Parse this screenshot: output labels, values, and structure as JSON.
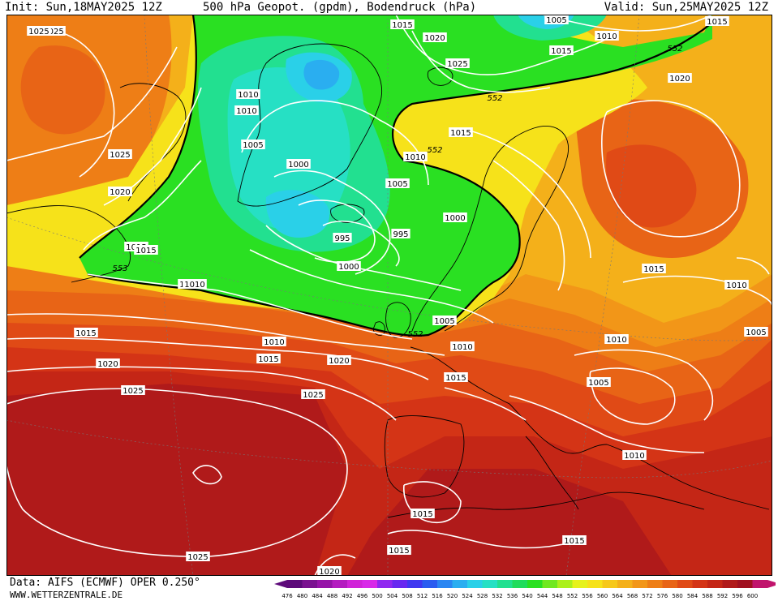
{
  "header": {
    "init": "Init: Sun,18MAY2025 12Z",
    "title": "500 hPa Geopot. (gpdm), Bodendruck (hPa)",
    "valid": "Valid: Sun,25MAY2025 12Z"
  },
  "footer": {
    "data_source": "Data: AIFS (ECMWF) OPER 0.250°",
    "website": "WWW.WETTERZENTRALE.DE"
  },
  "colors": {
    "greenland_high": "#f7aa1c",
    "azores_high": "#b11a1a",
    "trough_green": "#1ee41c",
    "low_cyan": "#18d6e4",
    "ridge_yellow": "#f6f21e",
    "isobar": "#ffffff",
    "coast": "#000000"
  },
  "colorbar": {
    "unit": "gpdm",
    "levels": [
      "476",
      "480",
      "484",
      "488",
      "492",
      "496",
      "500",
      "504",
      "508",
      "512",
      "516",
      "520",
      "524",
      "528",
      "532",
      "536",
      "540",
      "544",
      "548",
      "552",
      "556",
      "560",
      "564",
      "568",
      "572",
      "576",
      "580",
      "584",
      "588",
      "592",
      "596",
      "600"
    ],
    "colors": [
      "#5d0a7a",
      "#7a1290",
      "#9614a8",
      "#b41cc0",
      "#d024d8",
      "#d82ae8",
      "#9028f0",
      "#6828f0",
      "#4038f0",
      "#2a5cf0",
      "#2a86f2",
      "#2aaef0",
      "#2ad0e8",
      "#26e0c4",
      "#22e090",
      "#20dc5c",
      "#2ae022",
      "#70e820",
      "#acf01c",
      "#e6f21c",
      "#f6e21a",
      "#f6c81a",
      "#f4b01a",
      "#f29618",
      "#ee7e16",
      "#e86416",
      "#e04a16",
      "#d43416",
      "#c42616",
      "#b01a1a",
      "#a01020",
      "#c0146c"
    ]
  },
  "isobar_labels": [
    {
      "text": "1025",
      "name": "isobar-label-1025-nw"
    },
    {
      "text": "1025",
      "name": "isobar-label-1025-greenland"
    },
    {
      "text": "1020",
      "name": "isobar-label-1020-greenland"
    },
    {
      "text": "1015",
      "name": "isobar-label-1015-labrador"
    },
    {
      "text": "1010",
      "name": "isobar-label-1010-davis"
    },
    {
      "text": "1010",
      "name": "isobar-label-1010-davis-2"
    },
    {
      "text": "1005",
      "name": "isobar-label-1005-davis"
    },
    {
      "text": "1000",
      "name": "isobar-label-1000-low"
    },
    {
      "text": "995",
      "name": "isobar-label-995-center"
    },
    {
      "text": "995",
      "name": "isobar-label-995-east"
    },
    {
      "text": "1000",
      "name": "isobar-label-1000-south"
    },
    {
      "text": "1005",
      "name": "isobar-label-1005-low"
    },
    {
      "text": "1010",
      "name": "isobar-label-1010-mid"
    },
    {
      "text": "1000",
      "name": "isobar-label-1000-scand"
    },
    {
      "text": "1015",
      "name": "isobar-label-1015-top"
    },
    {
      "text": "1020",
      "name": "isobar-label-1020-top"
    },
    {
      "text": "1025",
      "name": "isobar-label-1025-top"
    },
    {
      "text": "1015",
      "name": "isobar-label-1015-norway"
    },
    {
      "text": "1010",
      "name": "isobar-label-1010-norway"
    },
    {
      "text": "1005",
      "name": "isobar-label-1005-arctic"
    },
    {
      "text": "1010",
      "name": "isobar-label-1010-arctic"
    },
    {
      "text": "1015",
      "name": "isobar-label-1015-arctic"
    },
    {
      "text": "1015",
      "name": "isobar-label-1015-ne"
    },
    {
      "text": "1020",
      "name": "isobar-label-1020-russia"
    },
    {
      "text": "1015",
      "name": "isobar-label-1015-russia"
    },
    {
      "text": "1010",
      "name": "isobar-label-1010-russia"
    },
    {
      "text": "1005",
      "name": "isobar-label-1005-east"
    },
    {
      "text": "1010",
      "name": "isobar-label-1010-balkans"
    },
    {
      "text": "1005",
      "name": "isobar-label-1005-balkans"
    },
    {
      "text": "1005",
      "name": "isobar-label-1005-northsea"
    },
    {
      "text": "1010",
      "name": "isobar-label-1010-northsea"
    },
    {
      "text": "1015",
      "name": "isobar-label-1015-france"
    },
    {
      "text": "1010",
      "name": "isobar-label-1010-med"
    },
    {
      "text": "1015",
      "name": "isobar-label-1015-algeria"
    },
    {
      "text": "1015",
      "name": "isobar-label-1015-sahara"
    },
    {
      "text": "1015",
      "name": "isobar-label-1015-morocco"
    },
    {
      "text": "1020",
      "name": "isobar-label-1020-bottom"
    },
    {
      "text": "1025",
      "name": "isobar-label-1025-atlantic-s"
    },
    {
      "text": "1025",
      "name": "isobar-label-1025-atlantic-w"
    },
    {
      "text": "1025",
      "name": "isobar-label-1025-atlantic-e"
    },
    {
      "text": "1020",
      "name": "isobar-label-1020-atlantic"
    },
    {
      "text": "1020",
      "name": "isobar-label-1020-atlantic-e"
    },
    {
      "text": "1015",
      "name": "isobar-label-1015-atlantic"
    },
    {
      "text": "1015",
      "name": "isobar-label-1015-atlantic-e"
    },
    {
      "text": "1010",
      "name": "isobar-label-1010-atlantic"
    },
    {
      "text": "1010",
      "name": "isobar-label-1010-atlantic-w"
    },
    {
      "text": "1015",
      "name": "isobar-label-1015-newfoundland"
    },
    {
      "text": "1020",
      "name": "isobar-label-1020-hudson"
    },
    {
      "text": "1025",
      "name": "isobar-label-1025-hudson"
    }
  ],
  "height_labels": [
    {
      "text": "553",
      "name": "height-label-553-west"
    },
    {
      "text": "552",
      "name": "height-label-552-norway"
    },
    {
      "text": "552",
      "name": "height-label-552-arctic"
    },
    {
      "text": "552",
      "name": "height-label-552-scand"
    },
    {
      "text": "552",
      "name": "height-label-552-south"
    }
  ]
}
